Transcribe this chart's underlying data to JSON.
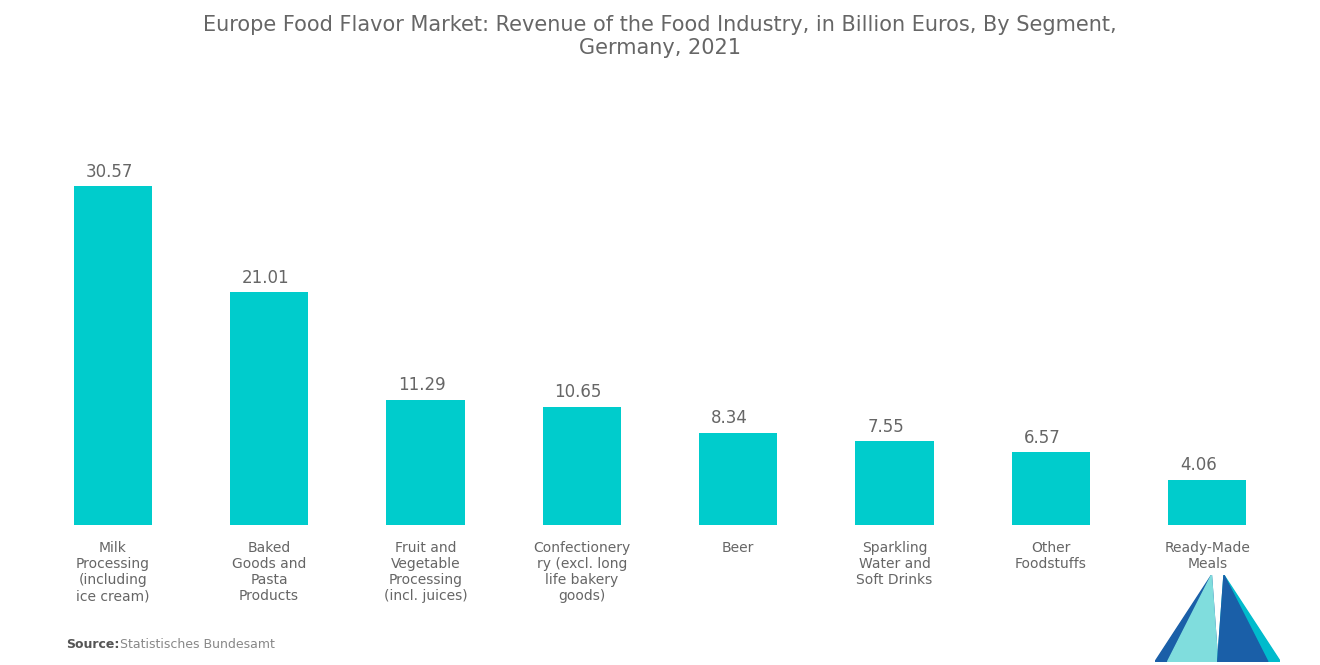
{
  "title": "Europe Food Flavor Market: Revenue of the Food Industry, in Billion Euros, By Segment,\nGermany, 2021",
  "categories": [
    "Milk\nProcessing\n(including\nice cream)",
    "Baked\nGoods and\nPasta\nProducts",
    "Fruit and\nVegetable\nProcessing\n(incl. juices)",
    "Confectionery\nry (excl. long\nlife bakery\ngoods)",
    "Beer",
    "Sparkling\nWater and\nSoft Drinks",
    "Other\nFoodstuffs",
    "Ready-Made\nMeals"
  ],
  "values": [
    30.57,
    21.01,
    11.29,
    10.65,
    8.34,
    7.55,
    6.57,
    4.06
  ],
  "bar_color": "#00CCCC",
  "value_color": "#666666",
  "label_color": "#666666",
  "title_color": "#666666",
  "background_color": "#ffffff",
  "source_bold": "Source:",
  "source_normal": "  Statistisches Bundesamt",
  "bar_width": 0.5,
  "ylim": [
    0,
    40
  ],
  "value_fontsize": 12,
  "label_fontsize": 10,
  "title_fontsize": 15,
  "logo_teal": "#00BBCC",
  "logo_blue": "#1A5FA8",
  "logo_light_teal": "#80DDDD"
}
